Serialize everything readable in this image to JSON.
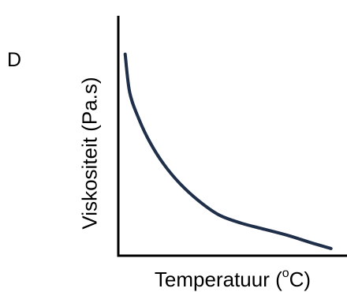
{
  "panel_label": "D",
  "chart_data": {
    "type": "line",
    "title": "",
    "xlabel_prefix": "Temperatuur (",
    "xlabel_superscript": "o",
    "xlabel_suffix": "C)",
    "ylabel": "Viskositeit (Pa.s)",
    "xlim": [
      0,
      1
    ],
    "ylim": [
      0,
      1
    ],
    "ticks": "none",
    "grid": false,
    "legend": "none",
    "series": [
      {
        "color": "#1f2f4a",
        "x": [
          0.03,
          0.05,
          0.09,
          0.14,
          0.2,
          0.27,
          0.35,
          0.44,
          0.54,
          0.64,
          0.74,
          0.84,
          0.93
        ],
        "y": [
          0.84,
          0.68,
          0.57,
          0.47,
          0.38,
          0.3,
          0.23,
          0.17,
          0.135,
          0.11,
          0.085,
          0.055,
          0.03
        ]
      }
    ],
    "axis_color": "#000000"
  }
}
